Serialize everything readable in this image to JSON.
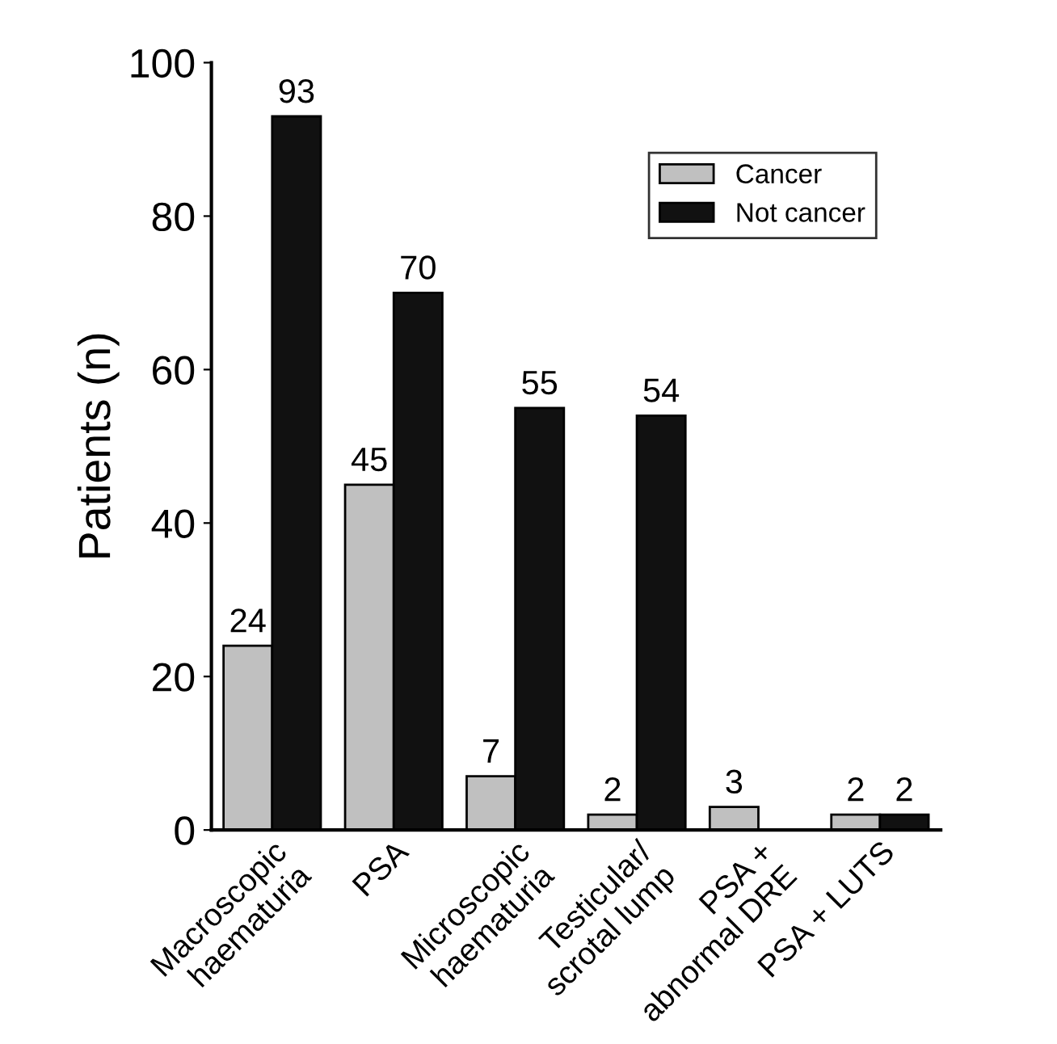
{
  "chart_data": {
    "type": "bar",
    "ylabel": "Patients (n)",
    "categories": [
      "Macroscopic\nhaematuria",
      "PSA",
      "Microscopic\nhaematuria",
      "Testicular/\nscrotal lump",
      "PSA +\nabnormal DRE",
      "PSA + LUTS"
    ],
    "series": [
      {
        "name": "Cancer",
        "color": "#c0c0c0",
        "values": [
          24,
          45,
          7,
          2,
          3,
          2
        ]
      },
      {
        "name": "Not cancer",
        "color": "#111111",
        "values": [
          93,
          70,
          55,
          54,
          null,
          2
        ]
      }
    ],
    "ylim": [
      0,
      100
    ],
    "yticks": [
      0,
      20,
      40,
      60,
      80,
      100
    ],
    "data_labels": true,
    "legend": "top right",
    "grid": false
  }
}
